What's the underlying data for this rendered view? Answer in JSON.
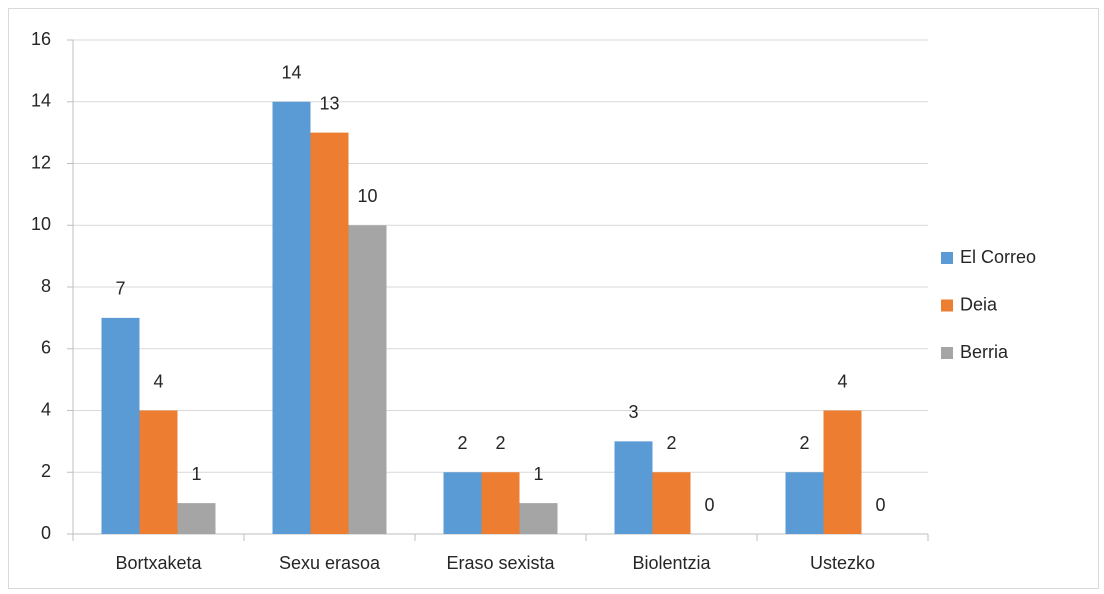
{
  "chart_data": {
    "type": "bar",
    "categories": [
      "Bortxaketa",
      "Sexu erasoa",
      "Eraso sexista",
      "Biolentzia",
      "Ustezko"
    ],
    "series": [
      {
        "name": "El Correo",
        "color": "#5b9bd5",
        "values": [
          7,
          14,
          2,
          3,
          2
        ]
      },
      {
        "name": "Deia",
        "color": "#ed7d31",
        "values": [
          4,
          13,
          2,
          2,
          4
        ]
      },
      {
        "name": "Berria",
        "color": "#a5a5a5",
        "values": [
          1,
          10,
          1,
          0,
          0
        ]
      }
    ],
    "ylim": [
      0,
      16
    ],
    "yticks": [
      0,
      2,
      4,
      6,
      8,
      10,
      12,
      14,
      16
    ],
    "grid": true,
    "legend": "right"
  }
}
